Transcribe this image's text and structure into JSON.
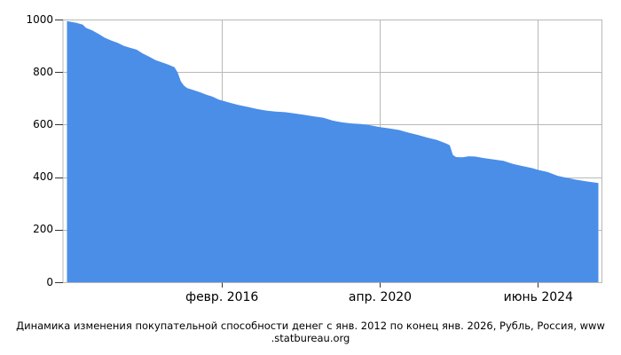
{
  "page": {
    "background_color": "#ffffff"
  },
  "chart_data": {
    "type": "area",
    "title": "Динамика изменения покупательной способности денег с янв. 2012 по конец янв. 2026, Рубль, Россия, www.statbureau.org",
    "title_lines": [
      "Динамика изменения покупательной способности денег с янв. 2012 по конец янв. 2026, Рубль, Россия, www",
      ".statbureau.org"
    ],
    "fill_color": "#4a8ee8",
    "grid_color": "#b8b8b8",
    "tick_color": "#333333",
    "text_color": "#000000",
    "grid": true,
    "legend": "none",
    "ylim": [
      0,
      1000
    ],
    "yticks": [
      0,
      200,
      400,
      600,
      800,
      1000
    ],
    "x_unit": "months since Jan 2012",
    "x_range_months": [
      0,
      169
    ],
    "xticks": [
      {
        "month": 49,
        "label": "февр. 2016"
      },
      {
        "month": 99,
        "label": "апр. 2020"
      },
      {
        "month": 149,
        "label": "июнь 2024"
      }
    ],
    "series": [
      {
        "name": "purchasing_power",
        "points_month_value": [
          [
            0,
            996
          ],
          [
            3,
            989
          ],
          [
            5,
            982
          ],
          [
            6,
            970
          ],
          [
            8,
            960
          ],
          [
            10,
            947
          ],
          [
            12,
            932
          ],
          [
            14,
            922
          ],
          [
            16,
            913
          ],
          [
            18,
            901
          ],
          [
            20,
            894
          ],
          [
            22,
            887
          ],
          [
            24,
            872
          ],
          [
            26,
            860
          ],
          [
            28,
            847
          ],
          [
            30,
            839
          ],
          [
            32,
            830
          ],
          [
            34,
            820
          ],
          [
            35,
            800
          ],
          [
            36,
            766
          ],
          [
            37,
            750
          ],
          [
            38,
            741
          ],
          [
            40,
            733
          ],
          [
            42,
            725
          ],
          [
            44,
            716
          ],
          [
            46,
            708
          ],
          [
            48,
            697
          ],
          [
            50,
            690
          ],
          [
            52,
            683
          ],
          [
            54,
            677
          ],
          [
            56,
            672
          ],
          [
            58,
            667
          ],
          [
            60,
            661
          ],
          [
            63,
            655
          ],
          [
            66,
            651
          ],
          [
            69,
            649
          ],
          [
            72,
            644
          ],
          [
            75,
            639
          ],
          [
            78,
            633
          ],
          [
            81,
            628
          ],
          [
            84,
            617
          ],
          [
            87,
            610
          ],
          [
            90,
            606
          ],
          [
            93,
            604
          ],
          [
            96,
            599
          ],
          [
            99,
            592
          ],
          [
            102,
            587
          ],
          [
            105,
            581
          ],
          [
            108,
            571
          ],
          [
            111,
            562
          ],
          [
            114,
            552
          ],
          [
            117,
            543
          ],
          [
            120,
            529
          ],
          [
            121,
            523
          ],
          [
            122,
            486
          ],
          [
            123,
            478
          ],
          [
            125,
            477
          ],
          [
            127,
            481
          ],
          [
            129,
            480
          ],
          [
            132,
            474
          ],
          [
            135,
            469
          ],
          [
            138,
            464
          ],
          [
            141,
            452
          ],
          [
            144,
            444
          ],
          [
            147,
            436
          ],
          [
            149,
            429
          ],
          [
            152,
            421
          ],
          [
            155,
            407
          ],
          [
            158,
            399
          ],
          [
            161,
            392
          ],
          [
            164,
            386
          ],
          [
            167,
            381
          ],
          [
            168,
            379
          ]
        ]
      }
    ]
  }
}
